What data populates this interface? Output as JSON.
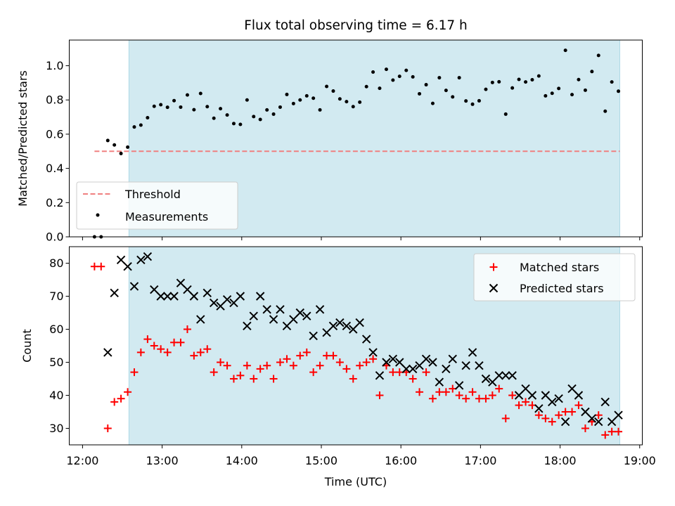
{
  "colors": {
    "background": "#ffffff",
    "observing_window": "#add8e6",
    "threshold": "#f08080",
    "measurements": "#000000",
    "matched_stars": "#ff0000",
    "predicted_stars": "#000000"
  },
  "chart_data": [
    {
      "type": "scatter",
      "title": "Flux total observing time = 6.17 h",
      "ylabel": "Matched/Predicted stars",
      "xlabel": "",
      "ylim": [
        0.0,
        1.15
      ],
      "yticks": [
        "0.0",
        "0.2",
        "0.4",
        "0.6",
        "0.8",
        "1.0"
      ],
      "x_axis": "time (hours UTC)",
      "xlim": [
        11.833,
        19.033
      ],
      "shaded_interval": [
        12.583,
        18.75
      ],
      "legend_position": "lower-left",
      "threshold": {
        "label": "Threshold",
        "value": 0.5,
        "x_range": [
          12.15,
          18.75
        ]
      },
      "series": [
        {
          "name": "Measurements",
          "points": [
            [
              12.15,
              0.0
            ],
            [
              12.233,
              0.0
            ],
            [
              12.317,
              0.563
            ],
            [
              12.4,
              0.537
            ],
            [
              12.483,
              0.487
            ],
            [
              12.567,
              0.524
            ],
            [
              12.65,
              0.642
            ],
            [
              12.733,
              0.653
            ],
            [
              12.817,
              0.696
            ],
            [
              12.9,
              0.763
            ],
            [
              12.983,
              0.772
            ],
            [
              13.067,
              0.757
            ],
            [
              13.15,
              0.796
            ],
            [
              13.233,
              0.758
            ],
            [
              13.317,
              0.829
            ],
            [
              13.4,
              0.743
            ],
            [
              13.483,
              0.838
            ],
            [
              13.567,
              0.761
            ],
            [
              13.65,
              0.693
            ],
            [
              13.733,
              0.749
            ],
            [
              13.817,
              0.712
            ],
            [
              13.9,
              0.662
            ],
            [
              13.983,
              0.657
            ],
            [
              14.067,
              0.8
            ],
            [
              14.15,
              0.703
            ],
            [
              14.233,
              0.686
            ],
            [
              14.317,
              0.742
            ],
            [
              14.4,
              0.717
            ],
            [
              14.483,
              0.758
            ],
            [
              14.567,
              0.832
            ],
            [
              14.65,
              0.779
            ],
            [
              14.733,
              0.8
            ],
            [
              14.817,
              0.824
            ],
            [
              14.9,
              0.81
            ],
            [
              14.983,
              0.742
            ],
            [
              15.067,
              0.879
            ],
            [
              15.15,
              0.852
            ],
            [
              15.233,
              0.806
            ],
            [
              15.317,
              0.79
            ],
            [
              15.4,
              0.761
            ],
            [
              15.483,
              0.787
            ],
            [
              15.567,
              0.878
            ],
            [
              15.65,
              0.963
            ],
            [
              15.733,
              0.868
            ],
            [
              15.817,
              0.979
            ],
            [
              15.9,
              0.916
            ],
            [
              15.983,
              0.938
            ],
            [
              16.067,
              0.973
            ],
            [
              16.15,
              0.935
            ],
            [
              16.233,
              0.836
            ],
            [
              16.317,
              0.889
            ],
            [
              16.4,
              0.78
            ],
            [
              16.483,
              0.93
            ],
            [
              16.567,
              0.856
            ],
            [
              16.65,
              0.818
            ],
            [
              16.733,
              0.93
            ],
            [
              16.817,
              0.794
            ],
            [
              16.9,
              0.775
            ],
            [
              16.983,
              0.795
            ],
            [
              17.067,
              0.862
            ],
            [
              17.15,
              0.902
            ],
            [
              17.233,
              0.906
            ],
            [
              17.317,
              0.717
            ],
            [
              17.4,
              0.87
            ],
            [
              17.483,
              0.92
            ],
            [
              17.567,
              0.905
            ],
            [
              17.65,
              0.918
            ],
            [
              17.733,
              0.94
            ],
            [
              17.817,
              0.824
            ],
            [
              17.9,
              0.839
            ],
            [
              17.983,
              0.867
            ],
            [
              18.067,
              1.09
            ],
            [
              18.15,
              0.831
            ],
            [
              18.233,
              0.919
            ],
            [
              18.317,
              0.857
            ],
            [
              18.4,
              0.966
            ],
            [
              18.483,
              1.06
            ],
            [
              18.567,
              0.734
            ],
            [
              18.65,
              0.905
            ],
            [
              18.733,
              0.851
            ]
          ]
        }
      ]
    },
    {
      "type": "scatter",
      "title": "",
      "ylabel": "Count",
      "xlabel": "Time (UTC)",
      "ylim": [
        25.0,
        85.0
      ],
      "yticks": [
        "30",
        "40",
        "50",
        "60",
        "70",
        "80"
      ],
      "xlim": [
        11.833,
        19.033
      ],
      "xticks": [
        "12:00",
        "13:00",
        "14:00",
        "15:00",
        "16:00",
        "17:00",
        "18:00",
        "19:00"
      ],
      "shaded_interval": [
        12.583,
        18.75
      ],
      "legend_position": "upper-right",
      "series": [
        {
          "name": "Matched stars",
          "marker": "plus",
          "points": [
            [
              12.15,
              79
            ],
            [
              12.233,
              79
            ],
            [
              12.317,
              30
            ],
            [
              12.4,
              38
            ],
            [
              12.483,
              39
            ],
            [
              12.567,
              41
            ],
            [
              12.65,
              47
            ],
            [
              12.733,
              53
            ],
            [
              12.817,
              57
            ],
            [
              12.9,
              55
            ],
            [
              12.983,
              54
            ],
            [
              13.067,
              53
            ],
            [
              13.15,
              56
            ],
            [
              13.233,
              56
            ],
            [
              13.317,
              60
            ],
            [
              13.4,
              52
            ],
            [
              13.483,
              53
            ],
            [
              13.567,
              54
            ],
            [
              13.65,
              47
            ],
            [
              13.733,
              50
            ],
            [
              13.817,
              49
            ],
            [
              13.9,
              45
            ],
            [
              13.983,
              46
            ],
            [
              14.067,
              49
            ],
            [
              14.15,
              45
            ],
            [
              14.233,
              48
            ],
            [
              14.317,
              49
            ],
            [
              14.4,
              45
            ],
            [
              14.483,
              50
            ],
            [
              14.567,
              51
            ],
            [
              14.65,
              49
            ],
            [
              14.733,
              52
            ],
            [
              14.817,
              53
            ],
            [
              14.9,
              47
            ],
            [
              14.983,
              49
            ],
            [
              15.067,
              52
            ],
            [
              15.15,
              52
            ],
            [
              15.233,
              50
            ],
            [
              15.317,
              48
            ],
            [
              15.4,
              45
            ],
            [
              15.483,
              49
            ],
            [
              15.567,
              50
            ],
            [
              15.65,
              51
            ],
            [
              15.733,
              40
            ],
            [
              15.817,
              49
            ],
            [
              15.9,
              47
            ],
            [
              15.983,
              47
            ],
            [
              16.067,
              47
            ],
            [
              16.15,
              45
            ],
            [
              16.233,
              41
            ],
            [
              16.317,
              47
            ],
            [
              16.4,
              39
            ],
            [
              16.483,
              41
            ],
            [
              16.567,
              41
            ],
            [
              16.65,
              42
            ],
            [
              16.733,
              40
            ],
            [
              16.817,
              39
            ],
            [
              16.9,
              41
            ],
            [
              16.983,
              39
            ],
            [
              17.067,
              39
            ],
            [
              17.15,
              40
            ],
            [
              17.233,
              42
            ],
            [
              17.317,
              33
            ],
            [
              17.4,
              40
            ],
            [
              17.483,
              37
            ],
            [
              17.567,
              38
            ],
            [
              17.65,
              37
            ],
            [
              17.733,
              34
            ],
            [
              17.817,
              33
            ],
            [
              17.9,
              32
            ],
            [
              17.983,
              34
            ],
            [
              18.067,
              35
            ],
            [
              18.15,
              35
            ],
            [
              18.233,
              37
            ],
            [
              18.317,
              30
            ],
            [
              18.4,
              32
            ],
            [
              18.483,
              34
            ],
            [
              18.567,
              28
            ],
            [
              18.65,
              29
            ],
            [
              18.733,
              29
            ]
          ]
        },
        {
          "name": "Predicted stars",
          "marker": "x",
          "points": [
            [
              12.317,
              53
            ],
            [
              12.4,
              71
            ],
            [
              12.483,
              81
            ],
            [
              12.567,
              79
            ],
            [
              12.65,
              73
            ],
            [
              12.733,
              81
            ],
            [
              12.817,
              82
            ],
            [
              12.9,
              72
            ],
            [
              12.983,
              70
            ],
            [
              13.067,
              70
            ],
            [
              13.15,
              70
            ],
            [
              13.233,
              74
            ],
            [
              13.317,
              72
            ],
            [
              13.4,
              70
            ],
            [
              13.483,
              63
            ],
            [
              13.567,
              71
            ],
            [
              13.65,
              68
            ],
            [
              13.733,
              67
            ],
            [
              13.817,
              69
            ],
            [
              13.9,
              68
            ],
            [
              13.983,
              70
            ],
            [
              14.067,
              61
            ],
            [
              14.15,
              64
            ],
            [
              14.233,
              70
            ],
            [
              14.317,
              66
            ],
            [
              14.4,
              63
            ],
            [
              14.483,
              66
            ],
            [
              14.567,
              61
            ],
            [
              14.65,
              63
            ],
            [
              14.733,
              65
            ],
            [
              14.817,
              64
            ],
            [
              14.9,
              58
            ],
            [
              14.983,
              66
            ],
            [
              15.067,
              59
            ],
            [
              15.15,
              61
            ],
            [
              15.233,
              62
            ],
            [
              15.317,
              61
            ],
            [
              15.4,
              60
            ],
            [
              15.483,
              62
            ],
            [
              15.567,
              57
            ],
            [
              15.65,
              53
            ],
            [
              15.733,
              46
            ],
            [
              15.817,
              50
            ],
            [
              15.9,
              51
            ],
            [
              15.983,
              50
            ],
            [
              16.067,
              48
            ],
            [
              16.15,
              48
            ],
            [
              16.233,
              49
            ],
            [
              16.317,
              51
            ],
            [
              16.4,
              50
            ],
            [
              16.483,
              44
            ],
            [
              16.567,
              48
            ],
            [
              16.65,
              51
            ],
            [
              16.733,
              43
            ],
            [
              16.817,
              49
            ],
            [
              16.9,
              53
            ],
            [
              16.983,
              49
            ],
            [
              17.067,
              45
            ],
            [
              17.15,
              44
            ],
            [
              17.233,
              46
            ],
            [
              17.317,
              46
            ],
            [
              17.4,
              46
            ],
            [
              17.483,
              40
            ],
            [
              17.567,
              42
            ],
            [
              17.65,
              40
            ],
            [
              17.733,
              36
            ],
            [
              17.817,
              40
            ],
            [
              17.9,
              38
            ],
            [
              17.983,
              39
            ],
            [
              18.067,
              32
            ],
            [
              18.15,
              42
            ],
            [
              18.233,
              40
            ],
            [
              18.317,
              35
            ],
            [
              18.4,
              33
            ],
            [
              18.483,
              32
            ],
            [
              18.567,
              38
            ],
            [
              18.65,
              32
            ],
            [
              18.733,
              34
            ]
          ]
        }
      ]
    }
  ]
}
